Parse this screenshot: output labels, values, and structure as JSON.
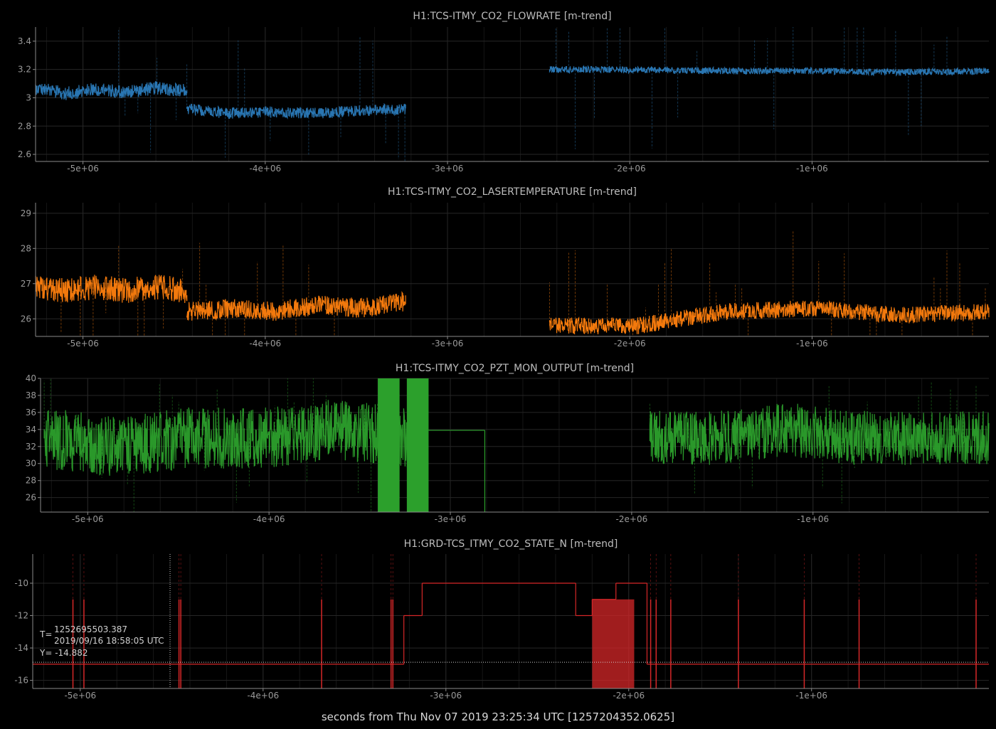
{
  "xaxis_label": "seconds from Thu Nov 07 2019 23:25:34 UTC [1257204352.0625]",
  "cursor": {
    "t_prefix": "T=",
    "t_value": "1252695503.387",
    "t_date": "2019/09/16 18:58:05 UTC",
    "y_text": "Y= -14.882",
    "x": -4508849,
    "y": -14.882
  },
  "chart_data": [
    {
      "type": "line",
      "title": "H1:TCS-ITMY_CO2_FLOWRATE [m-trend]",
      "color": "#2b7bba",
      "xlim": [
        -5260000,
        -30000
      ],
      "ylim": [
        2.55,
        3.5
      ],
      "xticks": [
        -5000000,
        -4000000,
        -3000000,
        -2000000,
        -1000000
      ],
      "xtick_labels": [
        "-5e+06",
        "-4e+06",
        "-3e+06",
        "-2e+06",
        "-1e+06"
      ],
      "yticks": [
        2.6,
        2.8,
        3.0,
        3.2,
        3.4
      ],
      "ytick_labels": [
        "2.6",
        "2.8",
        "3",
        "3.2",
        "3.4"
      ],
      "series": [
        {
          "segments": [
            {
              "x": [
                -5260000,
                -4430000
              ],
              "level": [
                3.07,
                3.03,
                3.06,
                3.04,
                3.07,
                3.05
              ],
              "noise": 0.06
            },
            {
              "x": [
                -4430000,
                -3230000
              ],
              "level": [
                2.92,
                2.89,
                2.9,
                2.89,
                2.91,
                2.92
              ],
              "noise": 0.05
            },
            {
              "x": [
                -2440000,
                -30000
              ],
              "level": [
                3.2,
                3.2,
                3.19,
                3.19,
                3.18,
                3.19
              ],
              "noise": 0.03
            }
          ]
        }
      ]
    },
    {
      "type": "line",
      "title": "H1:TCS-ITMY_CO2_LASERTEMPERATURE [m-trend]",
      "color": "#ff7f0e",
      "xlim": [
        -5260000,
        -30000
      ],
      "ylim": [
        25.5,
        29.3
      ],
      "xticks": [
        -5000000,
        -4000000,
        -3000000,
        -2000000,
        -1000000
      ],
      "xtick_labels": [
        "-5e+06",
        "-4e+06",
        "-3e+06",
        "-2e+06",
        "-1e+06"
      ],
      "yticks": [
        26,
        27,
        28,
        29
      ],
      "ytick_labels": [
        "26",
        "27",
        "28",
        "29"
      ],
      "series": [
        {
          "segments": [
            {
              "x": [
                -5260000,
                -4430000
              ],
              "level": [
                26.9,
                26.8,
                26.9,
                26.8,
                26.9,
                26.8
              ],
              "noise": 0.45
            },
            {
              "x": [
                -4430000,
                -3230000
              ],
              "level": [
                26.2,
                26.3,
                26.2,
                26.4,
                26.3,
                26.5
              ],
              "noise": 0.35
            },
            {
              "x": [
                -2440000,
                -30000
              ],
              "level": [
                25.8,
                25.8,
                26.2,
                26.3,
                26.1,
                26.2
              ],
              "noise": 0.3
            }
          ]
        }
      ]
    },
    {
      "type": "line",
      "title": "H1:TCS-ITMY_CO2_PZT_MON_OUTPUT [m-trend]",
      "color": "#2ca02c",
      "xlim": [
        -5260000,
        -30000
      ],
      "ylim": [
        24.3,
        40
      ],
      "xticks": [
        -5000000,
        -4000000,
        -3000000,
        -2000000,
        -1000000
      ],
      "xtick_labels": [
        "-5e+06",
        "-4e+06",
        "-3e+06",
        "-2e+06",
        "-1e+06"
      ],
      "yticks": [
        26,
        28,
        30,
        32,
        34,
        36,
        38,
        40
      ],
      "ytick_labels": [
        "26",
        "28",
        "30",
        "32",
        "34",
        "36",
        "38",
        "40"
      ],
      "series": [
        {
          "segments": [
            {
              "x": [
                -5240000,
                -3230000
              ],
              "level": [
                33,
                32,
                33,
                33,
                34,
                33
              ],
              "noise": 4.5
            },
            {
              "x": [
                -1900000,
                -30000
              ],
              "level": [
                33,
                33,
                34,
                33,
                33,
                33
              ],
              "noise": 4
            }
          ],
          "filled": [
            [
              -3400000,
              -3280000
            ],
            [
              -3240000,
              -3120000
            ]
          ],
          "steps": [
            {
              "x": [
                -3120000,
                -2810000
              ],
              "y": 33.9
            },
            {
              "x": [
                -2810000,
                -2810000
              ],
              "y": 24.3
            }
          ]
        }
      ]
    },
    {
      "type": "line",
      "title": "H1:GRD-TCS_ITMY_CO2_STATE_N [m-trend]",
      "color": "#d62728",
      "xlim": [
        -5260000,
        -30000
      ],
      "ylim": [
        -16.5,
        -8.2
      ],
      "xticks": [
        -5000000,
        -4000000,
        -3000000,
        -2000000,
        -1000000
      ],
      "xtick_labels": [
        "-5e+06",
        "-4e+06",
        "-3e+06",
        "-2e+06",
        "-1e+06"
      ],
      "yticks": [
        -16,
        -14,
        -12,
        -10
      ],
      "ytick_labels": [
        "-16",
        "-14",
        "-12",
        "-10"
      ],
      "series": [
        {
          "steps": [
            {
              "x": [
                -5260000,
                -3230000
              ],
              "y": -15.0
            },
            {
              "x": [
                -3230000,
                -3130000
              ],
              "y": -12.0
            },
            {
              "x": [
                -3130000,
                -2290000
              ],
              "y": -10.0
            },
            {
              "x": [
                -2290000,
                -2200000
              ],
              "y": -12.0
            },
            {
              "x": [
                -2200000,
                -2070000
              ],
              "y": -11.0
            },
            {
              "x": [
                -2070000,
                -1900000
              ],
              "y": -10.0
            },
            {
              "x": [
                -1900000,
                -30000
              ],
              "y": -15.0
            }
          ],
          "filled": [
            [
              -2200000,
              -1970000
            ]
          ],
          "spikes": [
            -5040000,
            -4980000,
            -4460000,
            -4450000,
            -3680000,
            -3300000,
            -3290000,
            -1880000,
            -1850000,
            -1770000,
            -1400000,
            -1040000,
            -740000,
            -100000
          ]
        }
      ]
    }
  ]
}
